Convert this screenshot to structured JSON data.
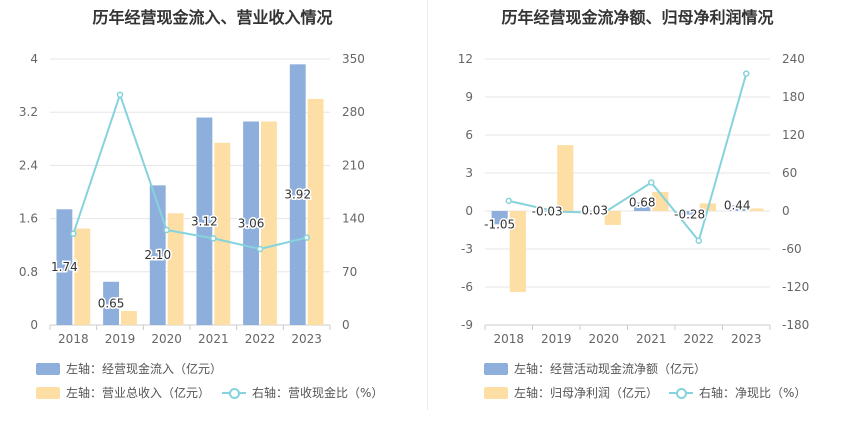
{
  "chart_data": [
    {
      "type": "bar",
      "title": "历年经营现金流入、营业收入情况",
      "categories": [
        "2018",
        "2019",
        "2020",
        "2021",
        "2022",
        "2023"
      ],
      "left_axis": {
        "ticks": [
          "0",
          "0.8",
          "1.6",
          "2.4",
          "3.2",
          "4"
        ],
        "ylim": [
          0,
          4
        ]
      },
      "right_axis": {
        "ticks": [
          "0",
          "70",
          "140",
          "210",
          "280",
          "350"
        ],
        "ylim": [
          0,
          350
        ]
      },
      "series": [
        {
          "name": "左轴：经营现金流入（亿元）",
          "type": "bar",
          "axis": "left",
          "color": "#8eaedc",
          "values": [
            1.74,
            0.65,
            2.1,
            3.12,
            3.06,
            3.92
          ],
          "labels": [
            "1.74",
            "0.65",
            "2.10",
            "3.12",
            "3.06",
            "3.92"
          ]
        },
        {
          "name": "左轴：营业总收入（亿元）",
          "type": "bar",
          "axis": "left",
          "color": "#fddea4",
          "values": [
            1.45,
            0.21,
            1.68,
            2.74,
            3.06,
            3.4
          ]
        },
        {
          "name": "右轴：营收现金比（%）",
          "type": "line",
          "axis": "right",
          "color": "#85d3dc",
          "values": [
            120,
            303,
            125,
            114,
            100,
            115
          ]
        }
      ],
      "grid": true,
      "legend_position": "bottom-left"
    },
    {
      "type": "bar",
      "title": "历年经营现金流净额、归母净利润情况",
      "categories": [
        "2018",
        "2019",
        "2020",
        "2021",
        "2022",
        "2023"
      ],
      "left_axis": {
        "ticks": [
          "-9",
          "-6",
          "-3",
          "0",
          "3",
          "6",
          "9",
          "12"
        ],
        "ylim": [
          -9,
          12
        ]
      },
      "right_axis": {
        "ticks": [
          "-180",
          "-120",
          "-60",
          "0",
          "60",
          "120",
          "180",
          "240"
        ],
        "ylim": [
          -180,
          240
        ]
      },
      "series": [
        {
          "name": "左轴：经营活动现金流净额（亿元）",
          "type": "bar",
          "axis": "left",
          "color": "#8eaedc",
          "values": [
            -1.05,
            -0.03,
            0.03,
            0.68,
            -0.28,
            0.44
          ],
          "labels": [
            "-1.05",
            "-0.03",
            "0.03",
            "0.68",
            "-0.28",
            "0.44"
          ]
        },
        {
          "name": "左轴：归母净利润（亿元）",
          "type": "bar",
          "axis": "left",
          "color": "#fddea4",
          "values": [
            -6.4,
            5.2,
            -1.1,
            1.5,
            0.6,
            0.2
          ]
        },
        {
          "name": "右轴：净现比（%）",
          "type": "line",
          "axis": "right",
          "color": "#85d3dc",
          "values": [
            16,
            -1,
            -3,
            45,
            -47,
            217
          ]
        }
      ],
      "grid": true,
      "legend_position": "bottom-left"
    }
  ]
}
